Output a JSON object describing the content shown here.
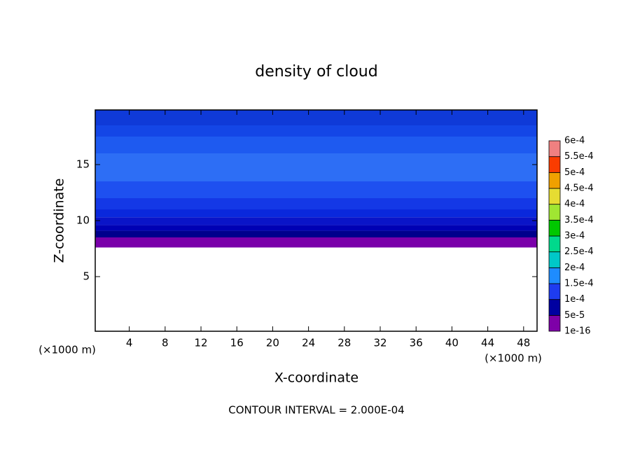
{
  "chart_data": {
    "type": "contour",
    "title": "density of cloud",
    "x_label": "X-coordinate",
    "y_label": "Z-coordinate",
    "y_unit": "(×1000 m)",
    "x_unit": "(×1000 m)",
    "footnote": "CONTOUR INTERVAL = 2.000E-04",
    "xlim": [
      0.2,
      49.5
    ],
    "ylim": [
      0.125,
      19.875
    ],
    "xticks": [
      4,
      8,
      12,
      16,
      20,
      24,
      28,
      32,
      36,
      40,
      44,
      48
    ],
    "yticks": [
      5,
      10,
      15
    ],
    "colorbar": {
      "labels": [
        "1e-16",
        "5e-5",
        "1e-4",
        "1.5e-4",
        "2e-4",
        "2.5e-4",
        "3e-4",
        "3.5e-4",
        "4e-4",
        "4.5e-4",
        "5e-4",
        "5.5e-4",
        "6e-4"
      ],
      "colors": [
        "#7e00a8",
        "#0000a0",
        "#1e3cf0",
        "#1e8cff",
        "#00c8c8",
        "#00d98c",
        "#00c800",
        "#a0e632",
        "#e6dc32",
        "#f0a000",
        "#fa3c00",
        "#f08080"
      ]
    },
    "bands": [
      {
        "z": [
          7.6,
          8.5
        ],
        "color": "#7a00aa"
      },
      {
        "z": [
          8.5,
          9.1
        ],
        "color": "#00008c"
      },
      {
        "z": [
          9.1,
          9.6
        ],
        "color": "#0000b4"
      },
      {
        "z": [
          9.6,
          10.3
        ],
        "color": "#0a14c8"
      },
      {
        "z": [
          10.3,
          11
        ],
        "color": "#0a28dc"
      },
      {
        "z": [
          11,
          12
        ],
        "color": "#1438e6"
      },
      {
        "z": [
          12,
          13.5
        ],
        "color": "#1e50f0"
      },
      {
        "z": [
          13.5,
          16
        ],
        "color": "#2d6ef5"
      },
      {
        "z": [
          16,
          17.5
        ],
        "color": "#1e5af0"
      },
      {
        "z": [
          17.5,
          18.5
        ],
        "color": "#1446e6"
      },
      {
        "z": [
          18.5,
          19.875
        ],
        "color": "#0f3ad8"
      }
    ]
  }
}
